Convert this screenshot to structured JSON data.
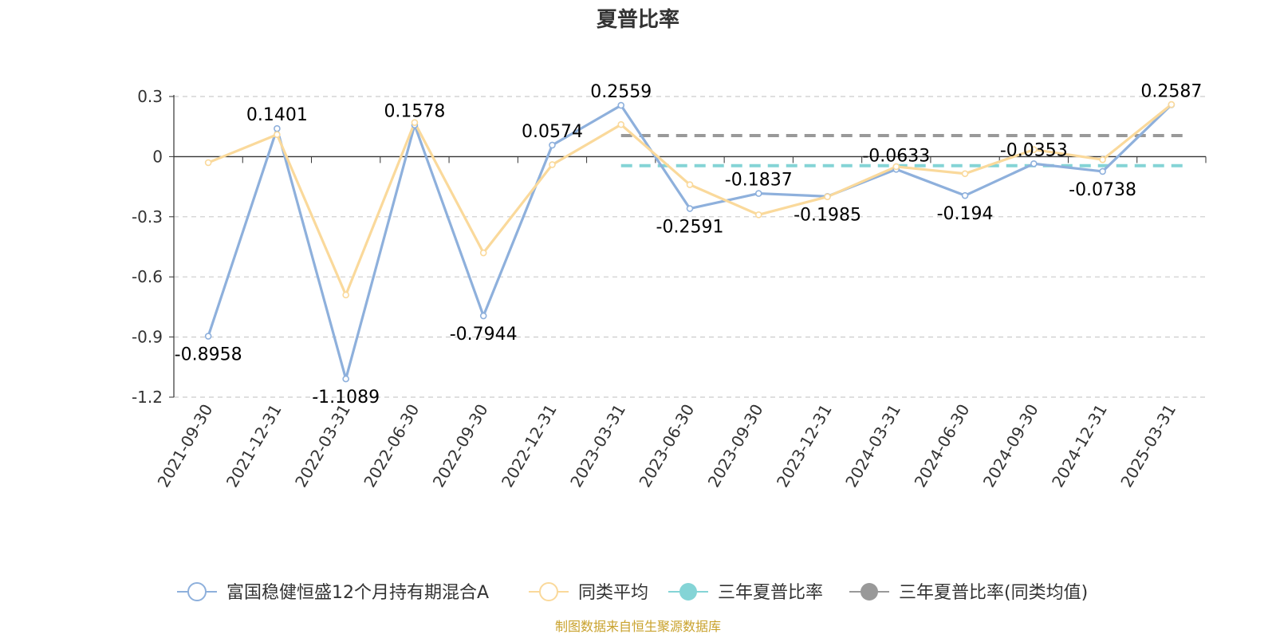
{
  "chart_data": {
    "type": "line",
    "title": "夏普比率",
    "categories": [
      "2021-09-30",
      "2021-12-31",
      "2022-03-31",
      "2022-06-30",
      "2022-09-30",
      "2022-12-31",
      "2023-03-31",
      "2023-06-30",
      "2023-09-30",
      "2023-12-31",
      "2024-03-31",
      "2024-06-30",
      "2024-09-30",
      "2024-12-31",
      "2025-03-31"
    ],
    "y_ticks": [
      "0.3",
      "0",
      "-0.3",
      "-0.6",
      "-0.9",
      "-1.2"
    ],
    "ylim": [
      -1.2,
      0.3
    ],
    "grid": true,
    "legend_position": "bottom",
    "series": [
      {
        "name": "富国稳健恒盛12个月持有期混合A",
        "color": "#8eb0dc",
        "values": [
          -0.8958,
          0.1401,
          -1.1089,
          0.1578,
          -0.7944,
          0.0574,
          0.2559,
          -0.2591,
          -0.1837,
          -0.1985,
          -0.0633,
          -0.194,
          -0.0353,
          -0.0738,
          0.2587
        ],
        "labels": [
          "-0.8958",
          "0.1401",
          "-1.1089",
          "0.1578",
          "-0.7944",
          "0.0574",
          "0.2559",
          "-0.2591",
          "-0.1837",
          "-0.1985",
          "-0.0633",
          "-0.194",
          "-0.0353",
          "-0.0738",
          "0.2587"
        ]
      },
      {
        "name": "同类平均",
        "color": "#fad99b",
        "values": [
          -0.03,
          0.11,
          -0.69,
          0.17,
          -0.48,
          -0.04,
          0.16,
          -0.14,
          -0.29,
          -0.2,
          -0.05,
          -0.085,
          0.035,
          -0.015,
          0.26
        ]
      },
      {
        "name": "三年夏普比率",
        "color": "#84d4d6",
        "start_category": "2023-03-31",
        "value": -0.045
      },
      {
        "name": "三年夏普比率(同类均值)",
        "color": "#999999",
        "start_category": "2023-03-31",
        "value": 0.105
      }
    ]
  },
  "footer": {
    "source": "制图数据来自恒生聚源数据库"
  }
}
